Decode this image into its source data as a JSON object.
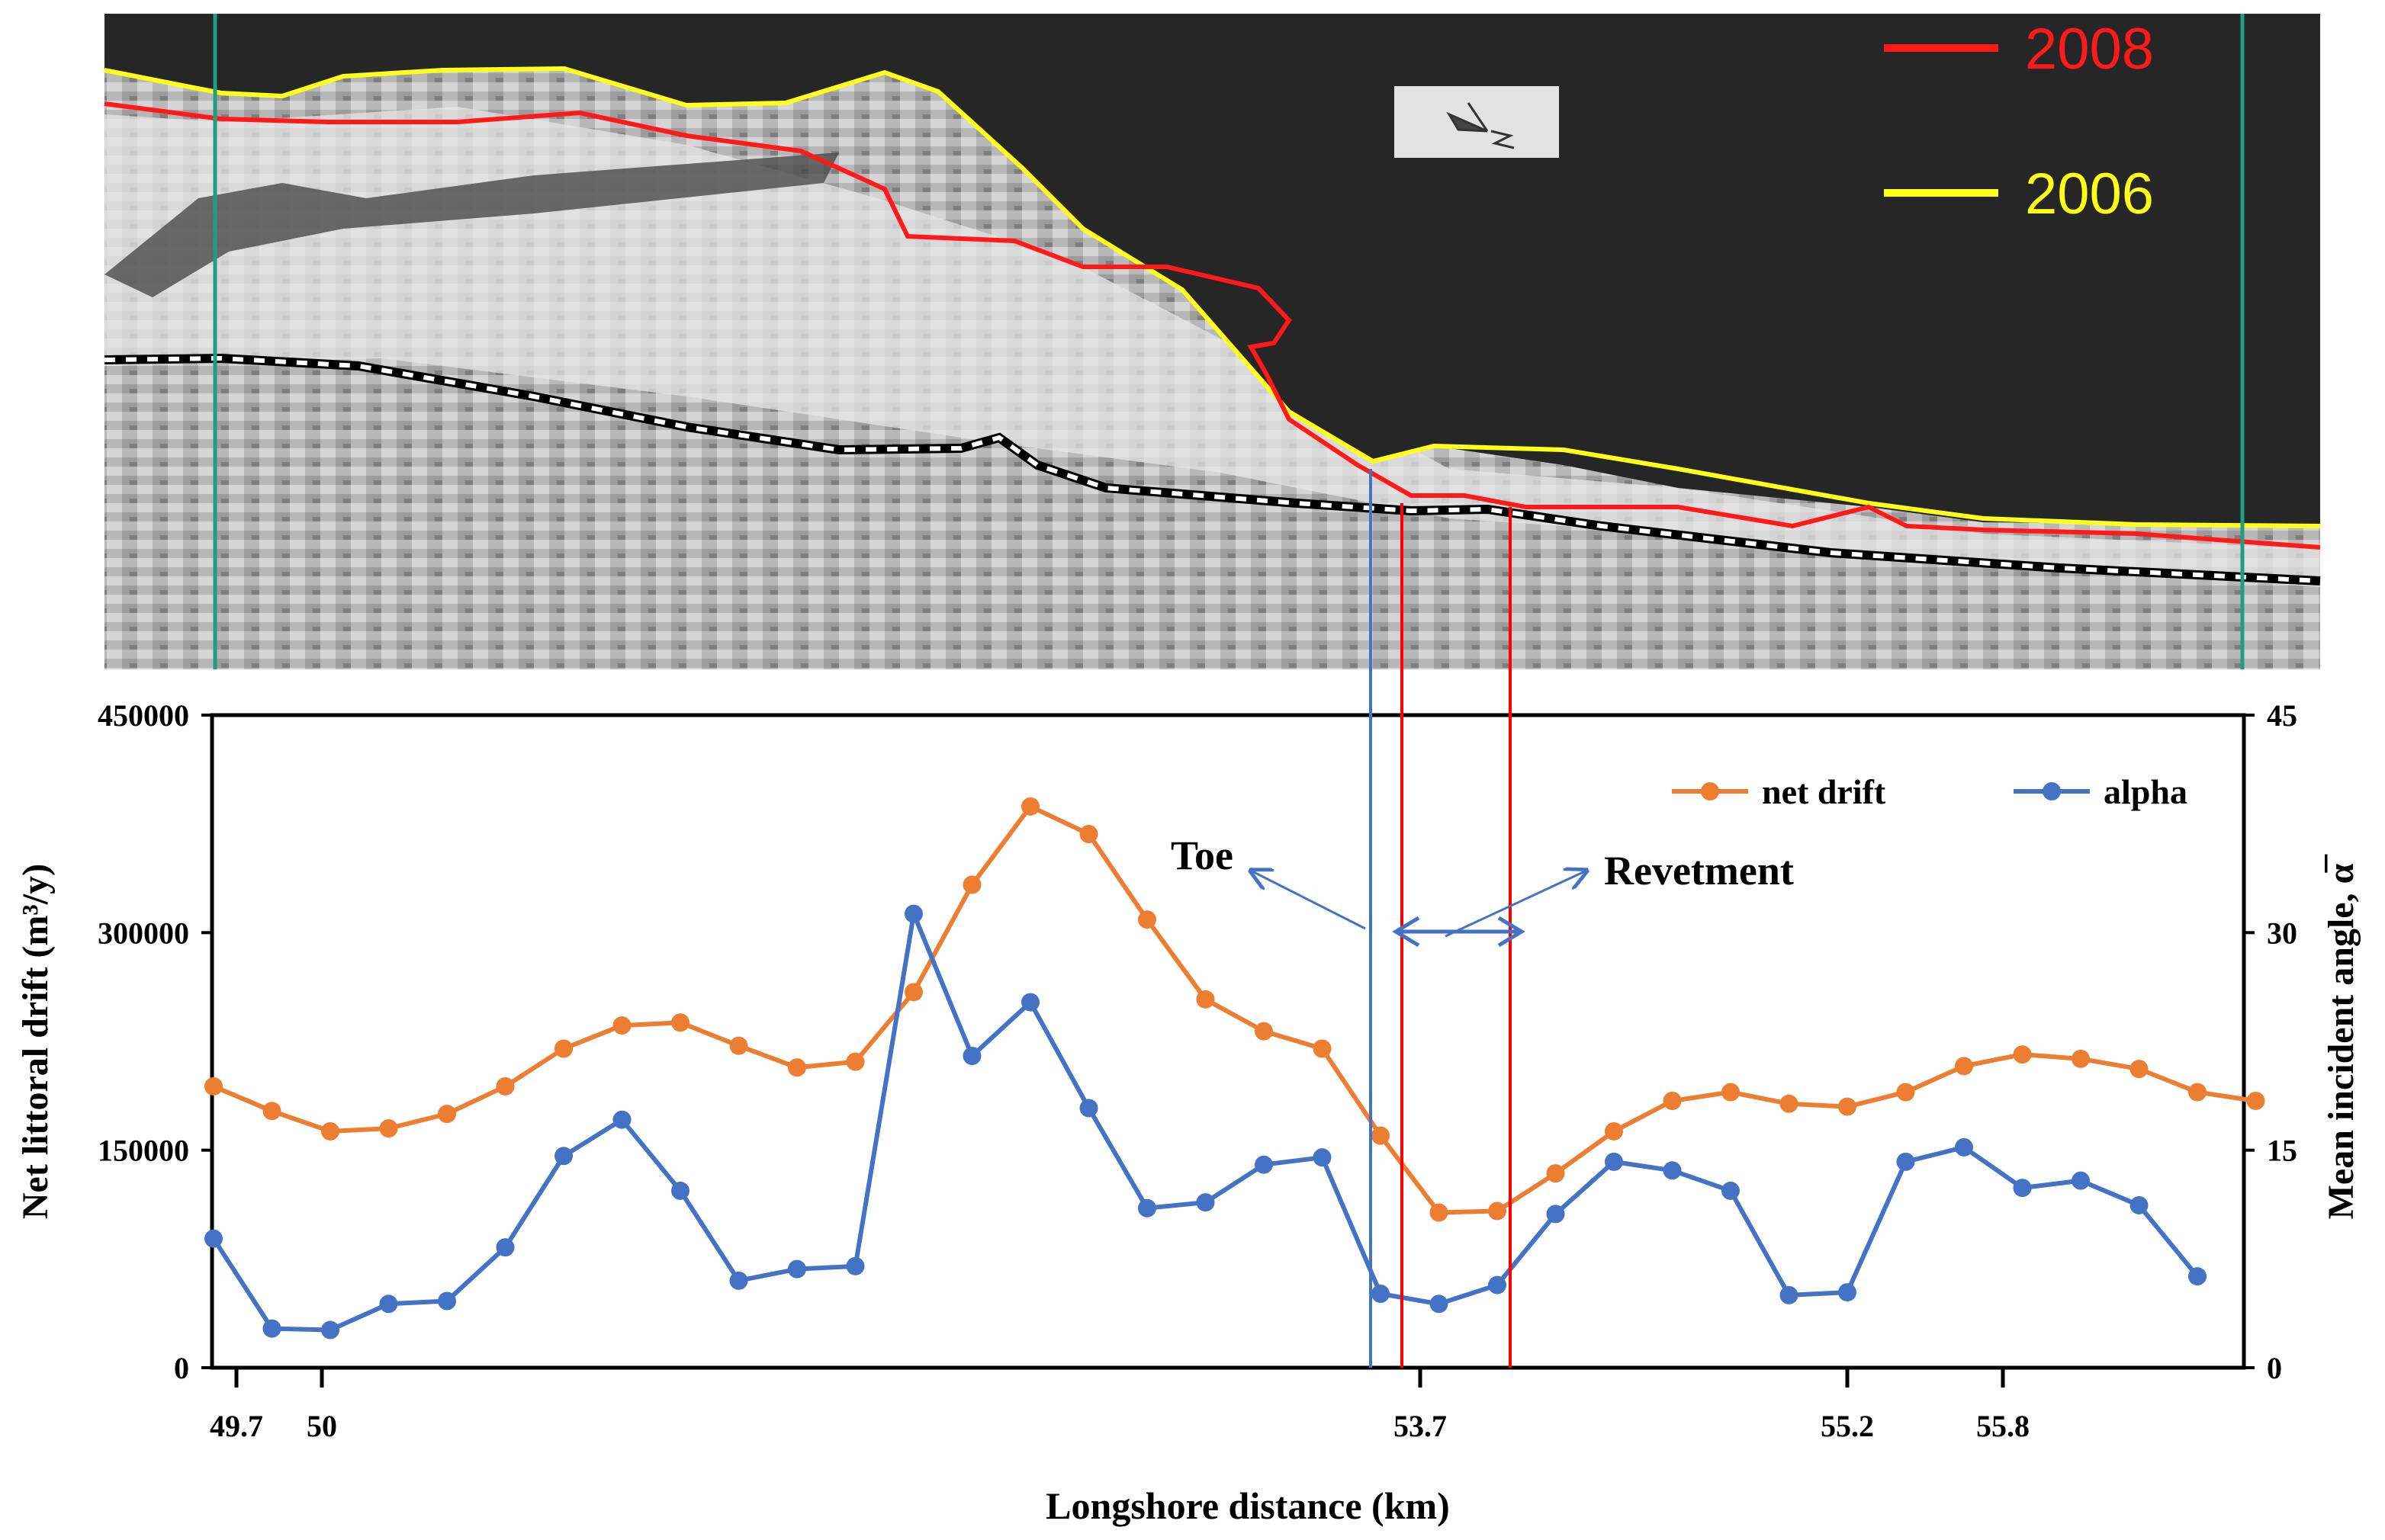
{
  "image": {
    "legend": [
      {
        "label": "2008",
        "color": "#ff1a1a"
      },
      {
        "label": "2006",
        "color": "#ffff1a"
      }
    ],
    "colors": {
      "sea": "#262626",
      "boundary_lines": "#1f9e80",
      "shoreline_2008": "#ff1a1a",
      "shoreline_2006": "#ffff1a",
      "road_dash": "#000000"
    },
    "north_arrow_icon": "north-arrow-icon"
  },
  "chart_data": {
    "type": "line",
    "xlabel": "Longshore distance (km)",
    "ylabel": "Net littoral drift (m³/y)",
    "y2label": "Mean incident angle, α̅",
    "ylim": [
      0,
      450000
    ],
    "y2lim": [
      0,
      45
    ],
    "yticks": [
      "0",
      "150000",
      "300000",
      "450000"
    ],
    "y2ticks": [
      "0",
      "15",
      "30",
      "45"
    ],
    "x_tick_labels": [
      "49.7",
      "50",
      "53.7",
      "55.2",
      "55.8"
    ],
    "legend_placement": "top-right",
    "grid": false,
    "series": [
      {
        "name": "net drift",
        "axis": "left",
        "color": "#ED7D31",
        "values": [
          194000,
          177000,
          163000,
          165000,
          175000,
          194000,
          220000,
          236000,
          238000,
          222000,
          207000,
          211000,
          259000,
          333000,
          387000,
          368000,
          309000,
          254000,
          232000,
          220000,
          160000,
          107000,
          108000,
          134000,
          163000,
          184000,
          190000,
          182000,
          180000,
          190000,
          208000,
          216000,
          213000,
          206000,
          190000,
          184000
        ]
      },
      {
        "name": "alpha",
        "axis": "right",
        "color": "#4472C4",
        "values": [
          8.9,
          2.7,
          2.6,
          4.4,
          4.6,
          8.3,
          14.6,
          17.1,
          12.2,
          6.0,
          6.8,
          7.0,
          31.3,
          21.5,
          25.2,
          17.9,
          11.0,
          11.4,
          14.0,
          14.5,
          5.1,
          4.4,
          5.7,
          10.6,
          14.2,
          13.6,
          12.2,
          5.0,
          5.2,
          14.2,
          15.2,
          12.4,
          12.9,
          11.2,
          6.3,
          null
        ]
      }
    ],
    "annotations": [
      {
        "text": "Toe",
        "color": "#4472C4"
      },
      {
        "text": "Revetment",
        "color": "#4472C4"
      }
    ],
    "marker_lines": {
      "toe_color": "#4472C4",
      "revetment_color": "#ff0000"
    }
  }
}
